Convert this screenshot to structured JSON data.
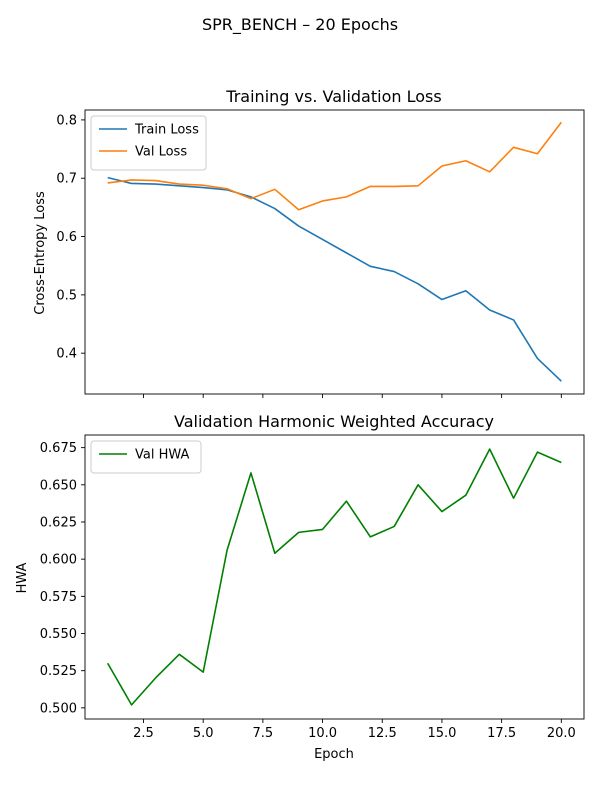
{
  "figure": {
    "suptitle": "SPR_BENCH – 20 Epochs"
  },
  "chart_data": [
    {
      "type": "line",
      "title": "Training vs. Validation Loss",
      "xlabel": "",
      "ylabel": "Cross-Entropy Loss",
      "xlim": [
        0.05,
        20.95
      ],
      "ylim": [
        0.33,
        0.817
      ],
      "xticks": [
        2.5,
        5.0,
        7.5,
        10.0,
        12.5,
        15.0,
        17.5,
        20.0
      ],
      "yticks": [
        0.4,
        0.5,
        0.6,
        0.7,
        0.8
      ],
      "ytick_labels": [
        "0.4",
        "0.5",
        "0.6",
        "0.7",
        "0.8"
      ],
      "legend": "top-left",
      "x": [
        1,
        2,
        3,
        4,
        5,
        6,
        7,
        8,
        9,
        10,
        11,
        12,
        13,
        14,
        15,
        16,
        17,
        18,
        19,
        20
      ],
      "series": [
        {
          "name": "Train Loss",
          "color": "#1f77b4",
          "values": [
            0.701,
            0.691,
            0.69,
            0.687,
            0.684,
            0.68,
            0.668,
            0.648,
            0.618,
            0.595,
            0.572,
            0.549,
            0.54,
            0.519,
            0.492,
            0.507,
            0.474,
            0.457,
            0.391,
            0.352
          ]
        },
        {
          "name": "Val Loss",
          "color": "#ff7f0e",
          "values": [
            0.692,
            0.697,
            0.696,
            0.69,
            0.688,
            0.682,
            0.665,
            0.681,
            0.646,
            0.661,
            0.668,
            0.686,
            0.686,
            0.687,
            0.721,
            0.73,
            0.711,
            0.753,
            0.742,
            0.796
          ]
        }
      ]
    },
    {
      "type": "line",
      "title": "Validation Harmonic Weighted Accuracy",
      "xlabel": "Epoch",
      "ylabel": "HWA",
      "xlim": [
        0.05,
        20.95
      ],
      "ylim": [
        0.4925,
        0.6835
      ],
      "xticks": [
        2.5,
        5.0,
        7.5,
        10.0,
        12.5,
        15.0,
        17.5,
        20.0
      ],
      "xtick_labels": [
        "2.5",
        "5.0",
        "7.5",
        "10.0",
        "12.5",
        "15.0",
        "17.5",
        "20.0"
      ],
      "yticks": [
        0.5,
        0.525,
        0.55,
        0.575,
        0.6,
        0.625,
        0.65,
        0.675
      ],
      "ytick_labels": [
        "0.500",
        "0.525",
        "0.550",
        "0.575",
        "0.600",
        "0.625",
        "0.650",
        "0.675"
      ],
      "legend": "top-left",
      "x": [
        1,
        2,
        3,
        4,
        5,
        6,
        7,
        8,
        9,
        10,
        11,
        12,
        13,
        14,
        15,
        16,
        17,
        18,
        19,
        20
      ],
      "series": [
        {
          "name": "Val HWA",
          "color": "#008000",
          "values": [
            0.53,
            0.502,
            0.52,
            0.536,
            0.524,
            0.606,
            0.658,
            0.604,
            0.618,
            0.62,
            0.639,
            0.615,
            0.622,
            0.65,
            0.632,
            0.643,
            0.674,
            0.641,
            0.672,
            0.665
          ]
        }
      ]
    }
  ]
}
